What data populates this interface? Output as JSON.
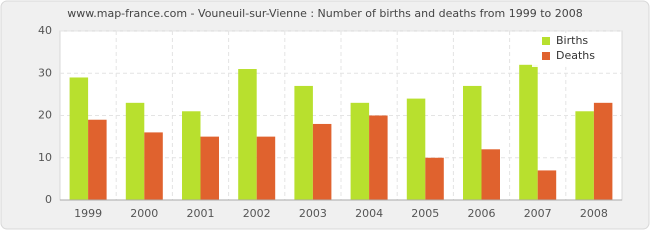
{
  "chart_data": {
    "type": "bar",
    "title": "www.map-france.com - Vouneuil-sur-Vienne : Number of births and deaths from 1999 to 2008",
    "categories": [
      "1999",
      "2000",
      "2001",
      "2002",
      "2003",
      "2004",
      "2005",
      "2006",
      "2007",
      "2008"
    ],
    "series": [
      {
        "name": "Births",
        "color": "#b8e02e",
        "values": [
          29,
          23,
          21,
          31,
          27,
          23,
          24,
          27,
          32,
          21
        ]
      },
      {
        "name": "Deaths",
        "color": "#e0622e",
        "values": [
          19,
          16,
          15,
          15,
          18,
          20,
          10,
          12,
          7,
          23
        ]
      }
    ],
    "ylim": [
      0,
      40
    ],
    "yticks": [
      0,
      10,
      20,
      30,
      40
    ],
    "grid": true,
    "legend": "upper-right"
  }
}
